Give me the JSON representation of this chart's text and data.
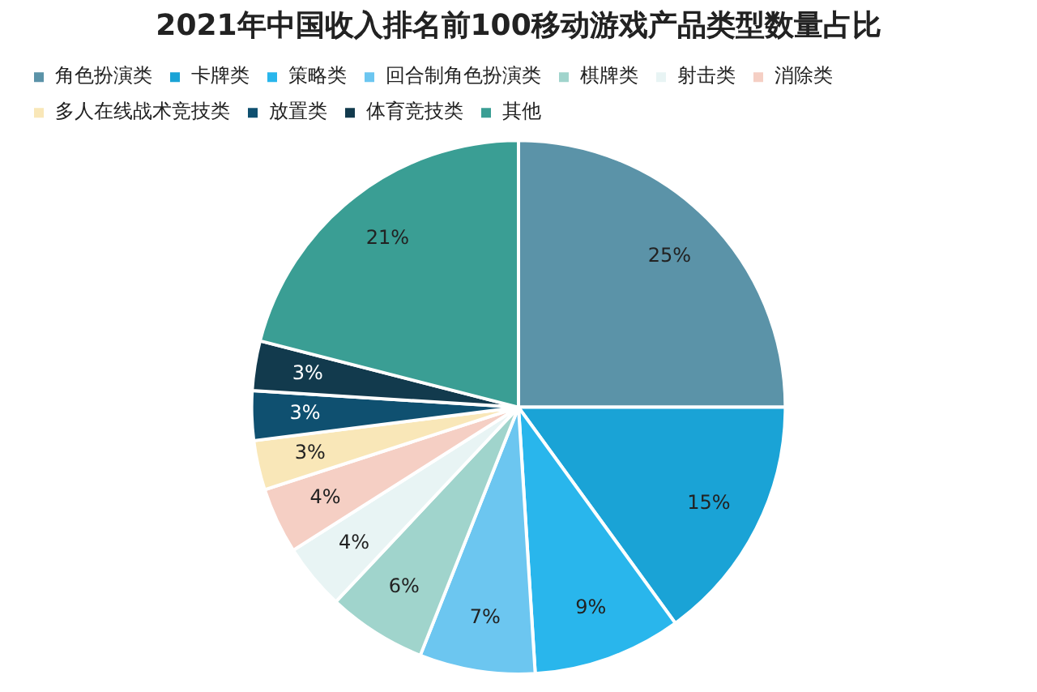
{
  "chart_data": {
    "type": "pie",
    "title": "2021年中国收入排名前100移动游戏产品类型数量占比",
    "categories": [
      "角色扮演类",
      "卡牌类",
      "策略类",
      "回合制角色扮演类",
      "棋牌类",
      "射击类",
      "消除类",
      "多人在线战术竞技类",
      "放置类",
      "体育竞技类",
      "其他"
    ],
    "values": [
      25,
      15,
      9,
      7,
      6,
      4,
      4,
      3,
      3,
      3,
      21
    ],
    "colors": [
      "#5b93a8",
      "#1aa3d6",
      "#29b6ec",
      "#6cc6f0",
      "#a0d4cc",
      "#e8f4f4",
      "#f5cfc4",
      "#f9e7b8",
      "#0f5070",
      "#123a4d",
      "#3a9e94"
    ],
    "value_labels": [
      "25%",
      "15%",
      "9%",
      "7%",
      "6%",
      "4%",
      "4%",
      "3%",
      "3%",
      "3%",
      "21%"
    ],
    "legend": "top"
  }
}
